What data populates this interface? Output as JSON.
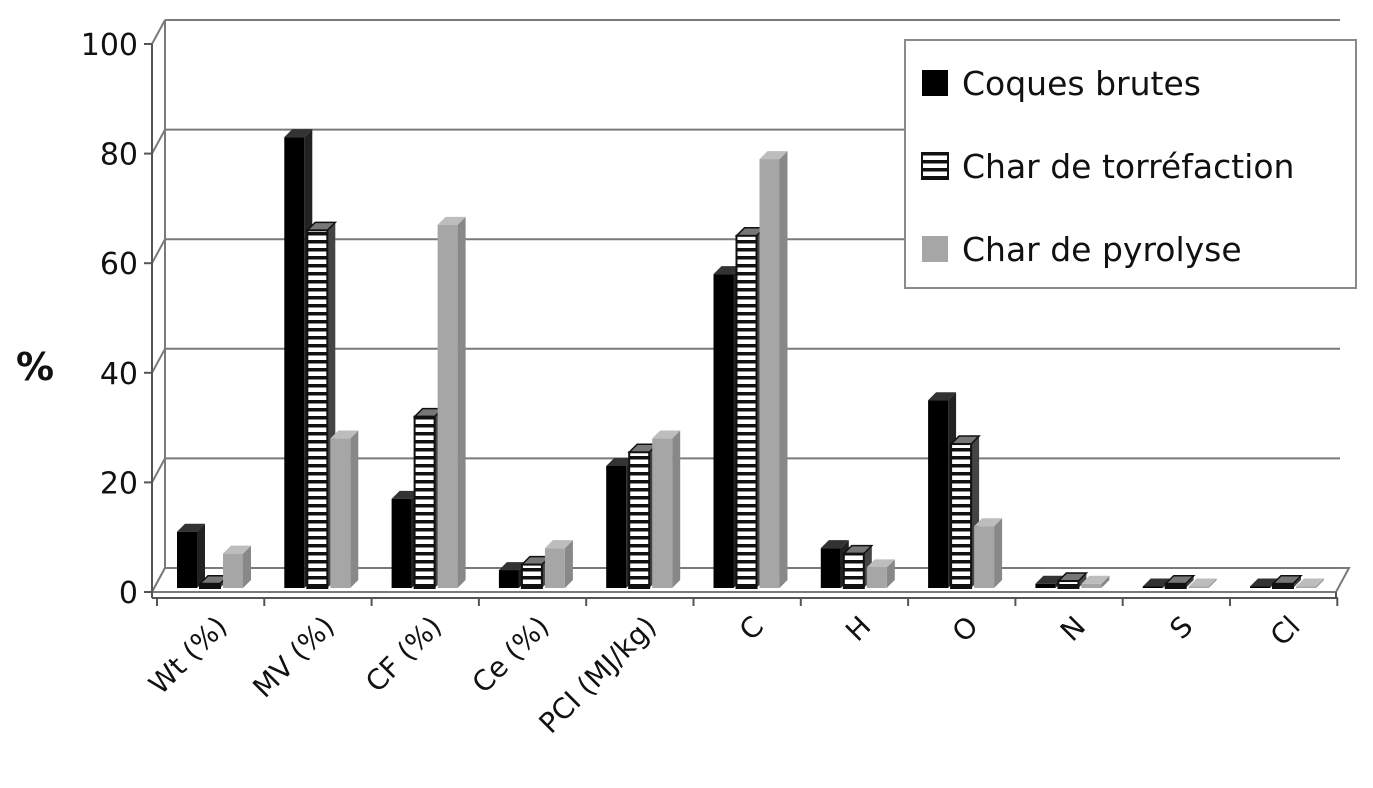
{
  "chart_data": {
    "type": "bar",
    "title": "",
    "xlabel": "",
    "ylabel": "%",
    "ylim": [
      0,
      100
    ],
    "yticks": [
      0,
      20,
      40,
      60,
      80,
      100
    ],
    "grid": true,
    "legend_position": "top-right",
    "categories": [
      "Wt (%)",
      "MV (%)",
      "CF (%)",
      "Ce (%)",
      "PCI (MJ/kg)",
      "C",
      "H",
      "O",
      "N",
      "S",
      "Cl"
    ],
    "series": [
      {
        "name": "Coques brutes",
        "pattern": "solid",
        "color": "#000000",
        "values": [
          11,
          83,
          17,
          4,
          23,
          58,
          8,
          35,
          1.5,
          1,
          1
        ]
      },
      {
        "name": "Char de torréfaction",
        "pattern": "horizontal-stripes",
        "color": "#ffffff",
        "values": [
          1.5,
          66,
          32,
          5,
          25.5,
          65,
          7,
          27,
          2,
          1.5,
          1.5
        ]
      },
      {
        "name": "Char de pyrolyse",
        "pattern": "solid",
        "color": "#a6a6a6",
        "values": [
          7,
          28,
          67,
          8,
          28,
          79,
          4.5,
          12,
          1.5,
          1,
          1
        ]
      }
    ]
  }
}
